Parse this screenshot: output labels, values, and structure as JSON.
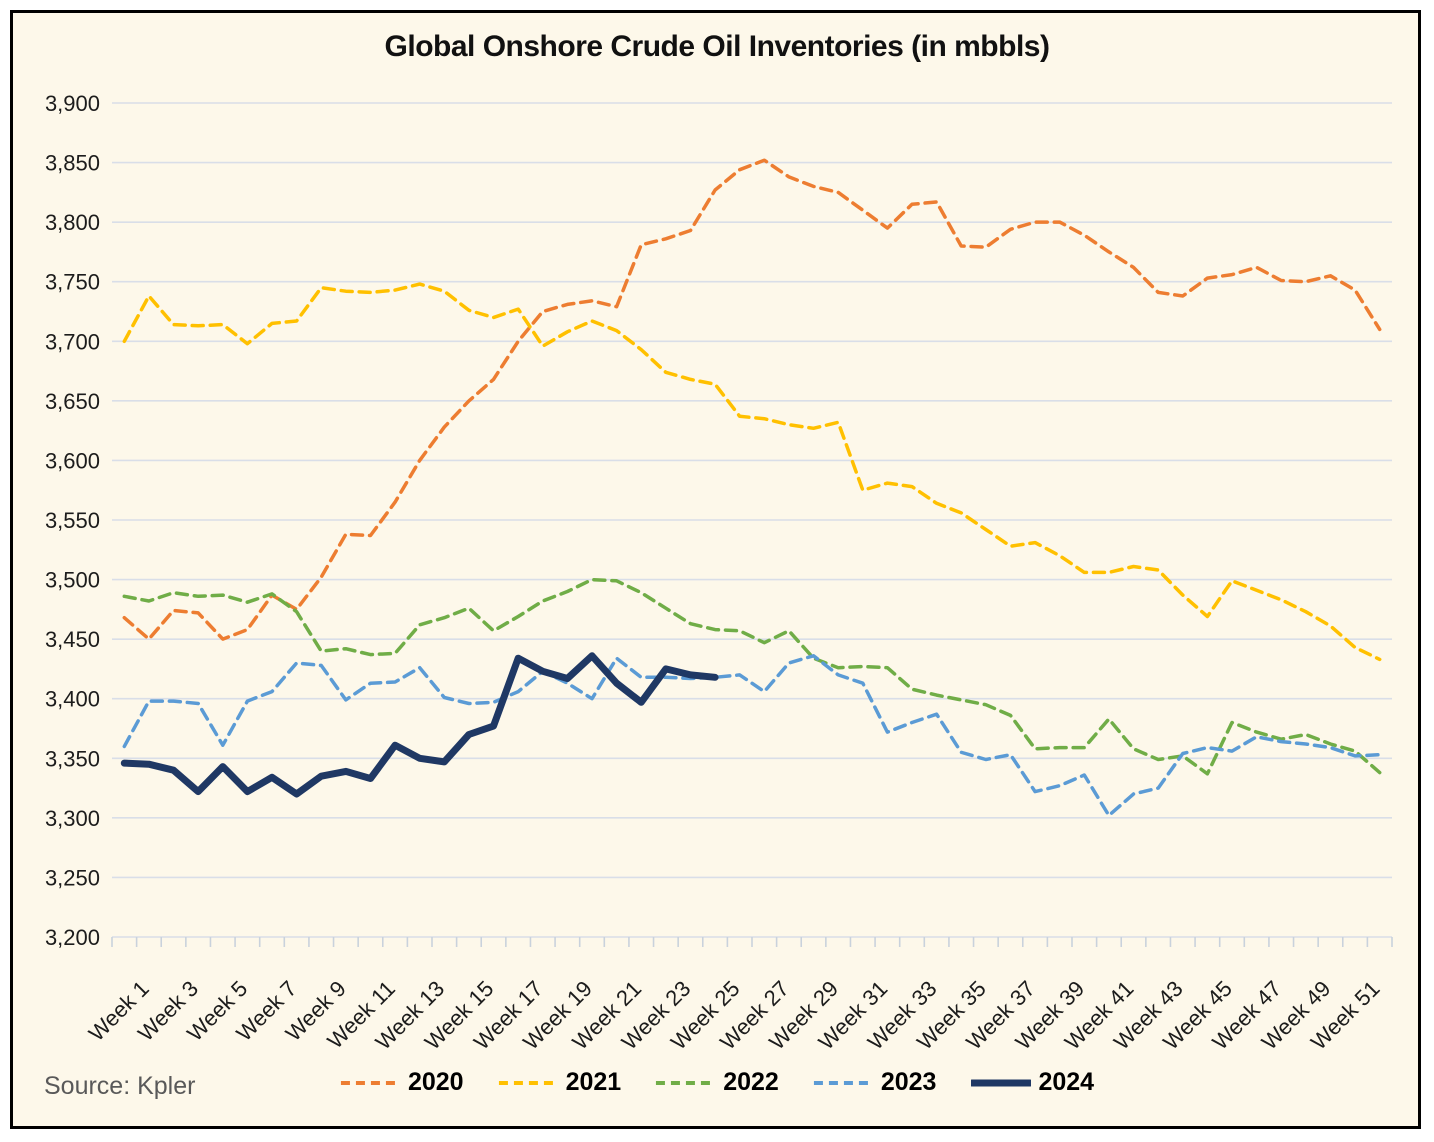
{
  "title": "Global Onshore Crude Oil Inventories (in mbbls)",
  "source": "Source: Kpler",
  "colors": {
    "background": "#FDF8EA",
    "border": "#000000",
    "gridline": "#D9DEE8",
    "axis_tick": "#C9D2DC",
    "title_text": "#111111",
    "source_text": "#595959"
  },
  "chart_data": {
    "type": "line",
    "title": "Global Onshore Crude Oil Inventories (in mbbls)",
    "xlabel": "",
    "ylabel": "",
    "ylim": [
      3200,
      3900
    ],
    "grid": "horizontal",
    "legend_position": "bottom",
    "weeks": 52,
    "x_tick_labels": [
      "Week 1",
      "Week 3",
      "Week 5",
      "Week 7",
      "Week 9",
      "Week 11",
      "Week 13",
      "Week 15",
      "Week 17",
      "Week 19",
      "Week 21",
      "Week 23",
      "Week 25",
      "Week 27",
      "Week 29",
      "Week 31",
      "Week 33",
      "Week 35",
      "Week 37",
      "Week 39",
      "Week 41",
      "Week 43",
      "Week 45",
      "Week 47",
      "Week 49",
      "Week 51"
    ],
    "y_tick_values": [
      3200,
      3250,
      3300,
      3350,
      3400,
      3450,
      3500,
      3550,
      3600,
      3650,
      3700,
      3750,
      3800,
      3850,
      3900
    ],
    "y_tick_labels": [
      "3,200",
      "3,250",
      "3,300",
      "3,350",
      "3,400",
      "3,450",
      "3,500",
      "3,550",
      "3,600",
      "3,650",
      "3,700",
      "3,750",
      "3,800",
      "3,850",
      "3,900"
    ],
    "series": [
      {
        "name": "2020",
        "color": "#ED7D31",
        "style": "dashed",
        "width": 3.5,
        "values": [
          3468,
          3450,
          3474,
          3472,
          3450,
          3458,
          3487,
          3475,
          3502,
          3538,
          3537,
          3565,
          3600,
          3628,
          3650,
          3668,
          3700,
          3725,
          3731,
          3734,
          3729,
          3781,
          3786,
          3793,
          3827,
          3844,
          3852,
          3838,
          3830,
          3825,
          3810,
          3795,
          3815,
          3817,
          3780,
          3779,
          3794,
          3800,
          3800,
          3789,
          3775,
          3762,
          3741,
          3738,
          3753,
          3756,
          3762,
          3751,
          3750,
          3755,
          3743,
          3710
        ]
      },
      {
        "name": "2021",
        "color": "#FFC000",
        "style": "dashed",
        "width": 3.5,
        "values": [
          3700,
          3738,
          3714,
          3713,
          3714,
          3698,
          3715,
          3717,
          3745,
          3742,
          3741,
          3743,
          3748,
          3742,
          3726,
          3720,
          3727,
          3696,
          3708,
          3717,
          3709,
          3693,
          3674,
          3668,
          3664,
          3637,
          3635,
          3630,
          3627,
          3632,
          3575,
          3581,
          3578,
          3564,
          3556,
          3542,
          3528,
          3531,
          3520,
          3506,
          3506,
          3511,
          3508,
          3487,
          3469,
          3499,
          3491,
          3483,
          3473,
          3461,
          3443,
          3433
        ]
      },
      {
        "name": "2022",
        "color": "#70AD47",
        "style": "dashed",
        "width": 3.5,
        "values": [
          3486,
          3482,
          3489,
          3486,
          3487,
          3481,
          3488,
          3473,
          3440,
          3442,
          3437,
          3438,
          3462,
          3468,
          3476,
          3457,
          3469,
          3482,
          3490,
          3500,
          3499,
          3489,
          3476,
          3463,
          3458,
          3457,
          3447,
          3457,
          3434,
          3426,
          3427,
          3426,
          3408,
          3403,
          3399,
          3395,
          3386,
          3358,
          3359,
          3359,
          3383,
          3358,
          3349,
          3352,
          3337,
          3380,
          3372,
          3366,
          3370,
          3362,
          3356,
          3338
        ]
      },
      {
        "name": "2023",
        "color": "#5B9BD5",
        "style": "dashed",
        "width": 3.5,
        "values": [
          3360,
          3398,
          3398,
          3396,
          3361,
          3398,
          3406,
          3430,
          3428,
          3399,
          3413,
          3414,
          3426,
          3401,
          3396,
          3397,
          3406,
          3423,
          3413,
          3400,
          3434,
          3418,
          3418,
          3417,
          3418,
          3420,
          3406,
          3430,
          3436,
          3420,
          3413,
          3372,
          3380,
          3387,
          3355,
          3349,
          3353,
          3322,
          3327,
          3336,
          3302,
          3320,
          3325,
          3354,
          3359,
          3356,
          3368,
          3364,
          3362,
          3359,
          3352,
          3353
        ]
      },
      {
        "name": "2024",
        "color": "#1F3864",
        "style": "solid",
        "width": 7,
        "values": [
          3346,
          3345,
          3340,
          3322,
          3343,
          3322,
          3334,
          3320,
          3335,
          3339,
          3333,
          3361,
          3350,
          3347,
          3370,
          3377,
          3434,
          3423,
          3417,
          3436,
          3413,
          3397,
          3425,
          3420,
          3418
        ]
      }
    ]
  }
}
